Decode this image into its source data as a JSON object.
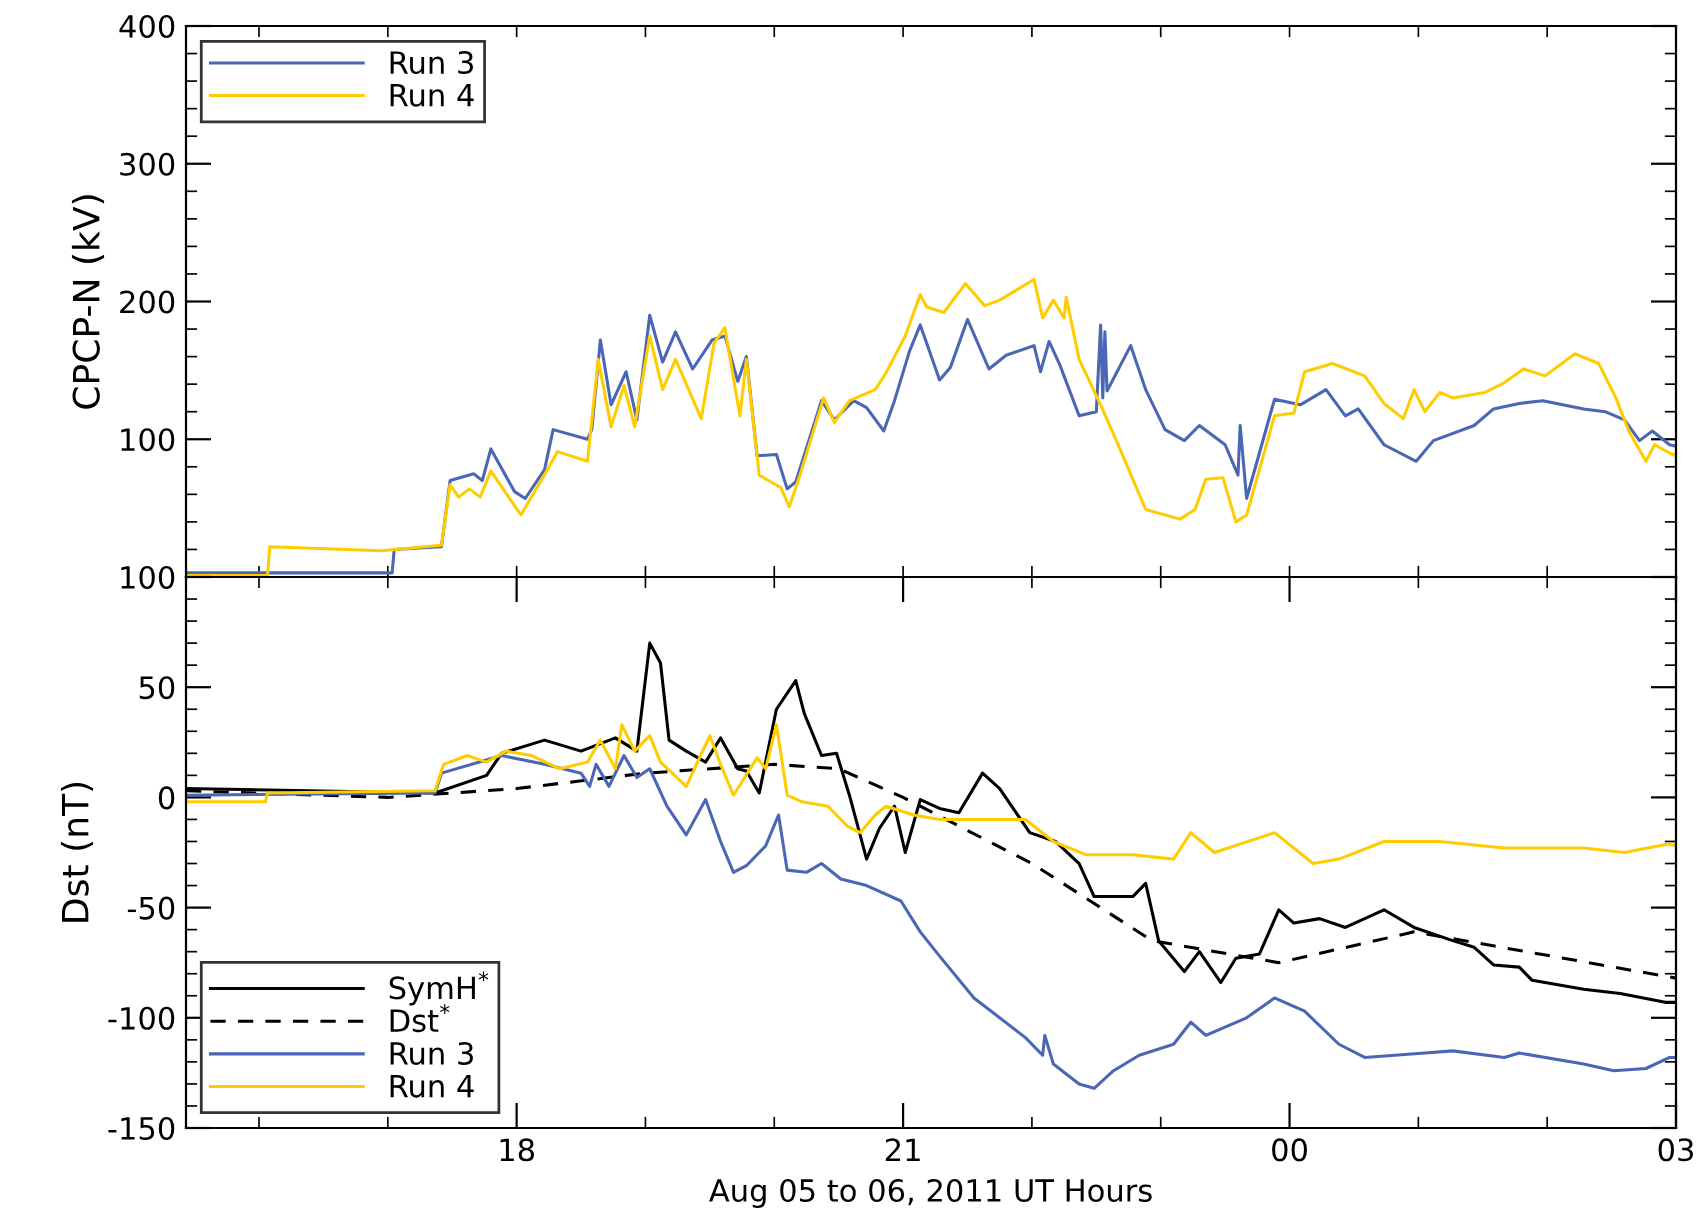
{
  "chart_data": [
    {
      "type": "line",
      "ylabel": "CPCP-N (kV)",
      "xlim": [
        "2011-08-05T15:26",
        "2011-08-06T03:00"
      ],
      "ylim": [
        0,
        400
      ],
      "xticks": [
        {
          "value": "2011-08-05T16:00",
          "label": null
        },
        {
          "value": "2011-08-05T17:00",
          "label": null
        },
        {
          "value": "2011-08-05T18:00",
          "label": null
        },
        {
          "value": "2011-08-05T19:00",
          "label": null
        },
        {
          "value": "2011-08-05T20:00",
          "label": null
        },
        {
          "value": "2011-08-05T21:00",
          "label": null
        },
        {
          "value": "2011-08-05T22:00",
          "label": null
        },
        {
          "value": "2011-08-05T23:00",
          "label": null
        },
        {
          "value": "2011-08-06T00:00",
          "label": null
        },
        {
          "value": "2011-08-06T01:00",
          "label": null
        },
        {
          "value": "2011-08-06T02:00",
          "label": null
        },
        {
          "value": "2011-08-06T03:00",
          "label": null
        }
      ],
      "yticks": [
        {
          "value": 0,
          "label": null
        },
        {
          "value": 20,
          "label": null
        },
        {
          "value": 40,
          "label": null
        },
        {
          "value": 60,
          "label": null
        },
        {
          "value": 80,
          "label": null
        },
        100,
        {
          "value": 120,
          "label": null
        },
        {
          "value": 140,
          "label": null
        },
        {
          "value": 160,
          "label": null
        },
        {
          "value": 180,
          "label": null
        },
        200,
        {
          "value": 220,
          "label": null
        },
        {
          "value": 240,
          "label": null
        },
        {
          "value": 260,
          "label": null
        },
        {
          "value": 280,
          "label": null
        },
        300,
        {
          "value": 320,
          "label": null
        },
        {
          "value": 340,
          "label": null
        },
        {
          "value": 360,
          "label": null
        },
        {
          "value": 380,
          "label": null
        },
        400
      ],
      "tick_labels": "y",
      "grid": false,
      "legend": "top left",
      "series": [
        {
          "name": "Run 3",
          "color": "#4a66b5",
          "line_style": "solid",
          "x": [
            "2011-08-05T15:26",
            "2011-08-05T17:02",
            "2011-08-05T17:03",
            "2011-08-05T17:25",
            "2011-08-05T17:29",
            "2011-08-05T17:40",
            "2011-08-05T17:44",
            "2011-08-05T17:48",
            "2011-08-05T17:59",
            "2011-08-05T18:04",
            "2011-08-05T18:13",
            "2011-08-05T18:17",
            "2011-08-05T18:33",
            "2011-08-05T18:35",
            "2011-08-05T18:39",
            "2011-08-05T18:44",
            "2011-08-05T18:51",
            "2011-08-05T18:56",
            "2011-08-05T19:02",
            "2011-08-05T19:08",
            "2011-08-05T19:14",
            "2011-08-05T19:22",
            "2011-08-05T19:31",
            "2011-08-05T19:37",
            "2011-08-05T19:43",
            "2011-08-05T19:47",
            "2011-08-05T19:52",
            "2011-08-05T20:01",
            "2011-08-05T20:06",
            "2011-08-05T20:10",
            "2011-08-05T20:22",
            "2011-08-05T20:28",
            "2011-08-05T20:37",
            "2011-08-05T20:43",
            "2011-08-05T20:51",
            "2011-08-05T20:56",
            "2011-08-05T21:03",
            "2011-08-05T21:08",
            "2011-08-05T21:17",
            "2011-08-05T21:22",
            "2011-08-05T21:30",
            "2011-08-05T21:40",
            "2011-08-05T21:48",
            "2011-08-05T22:01",
            "2011-08-05T22:04",
            "2011-08-05T22:08",
            "2011-08-05T22:13",
            "2011-08-05T22:22",
            "2011-08-05T22:30",
            "2011-08-05T22:32",
            "2011-08-05T22:33",
            "2011-08-05T22:34",
            "2011-08-05T22:35",
            "2011-08-05T22:46",
            "2011-08-05T22:53",
            "2011-08-05T23:02",
            "2011-08-05T23:11",
            "2011-08-05T23:18",
            "2011-08-05T23:30",
            "2011-08-05T23:36",
            "2011-08-05T23:37",
            "2011-08-05T23:40",
            "2011-08-05T23:53",
            "2011-08-06T00:05",
            "2011-08-06T00:17",
            "2011-08-06T00:26",
            "2011-08-06T00:32",
            "2011-08-06T00:44",
            "2011-08-06T00:59",
            "2011-08-06T01:07",
            "2011-08-06T01:26",
            "2011-08-06T01:35",
            "2011-08-06T01:47",
            "2011-08-06T01:58",
            "2011-08-06T02:17",
            "2011-08-06T02:27",
            "2011-08-06T02:36",
            "2011-08-06T02:43",
            "2011-08-06T02:49",
            "2011-08-06T02:57",
            "2011-08-06T03:00"
          ],
          "values": [
            3,
            3,
            20,
            22,
            70,
            75,
            70,
            93,
            62,
            57,
            78,
            107,
            100,
            107,
            172,
            125,
            149,
            114,
            190,
            156,
            178,
            151,
            172,
            175,
            142,
            160,
            88,
            89,
            64,
            69,
            128,
            114,
            128,
            123,
            106,
            128,
            164,
            183,
            143,
            152,
            187,
            151,
            161,
            168,
            149,
            171,
            154,
            117,
            120,
            183,
            130,
            178,
            135,
            168,
            136,
            107,
            99,
            110,
            96,
            74,
            110,
            57,
            129,
            125,
            136,
            117,
            122,
            96,
            84,
            99,
            110,
            122,
            126,
            128,
            122,
            120,
            114,
            99,
            106,
            96,
            95
          ]
        },
        {
          "name": "Run 4",
          "color": "#ffcc00",
          "line_style": "solid",
          "x": [
            "2011-08-05T15:26",
            "2011-08-05T16:04",
            "2011-08-05T16:05",
            "2011-08-05T16:57",
            "2011-08-05T17:25",
            "2011-08-05T17:29",
            "2011-08-05T17:33",
            "2011-08-05T17:38",
            "2011-08-05T17:43",
            "2011-08-05T17:48",
            "2011-08-05T18:02",
            "2011-08-05T18:14",
            "2011-08-05T18:19",
            "2011-08-05T18:33",
            "2011-08-05T18:38",
            "2011-08-05T18:44",
            "2011-08-05T18:50",
            "2011-08-05T18:55",
            "2011-08-05T19:02",
            "2011-08-05T19:08",
            "2011-08-05T19:14",
            "2011-08-05T19:26",
            "2011-08-05T19:32",
            "2011-08-05T19:37",
            "2011-08-05T19:44",
            "2011-08-05T19:47",
            "2011-08-05T19:53",
            "2011-08-05T20:03",
            "2011-08-05T20:07",
            "2011-08-05T20:12",
            "2011-08-05T20:23",
            "2011-08-05T20:28",
            "2011-08-05T20:35",
            "2011-08-05T20:47",
            "2011-08-05T20:52",
            "2011-08-05T21:01",
            "2011-08-05T21:08",
            "2011-08-05T21:11",
            "2011-08-05T21:19",
            "2011-08-05T21:29",
            "2011-08-05T21:38",
            "2011-08-05T21:45",
            "2011-08-05T22:01",
            "2011-08-05T22:05",
            "2011-08-05T22:10",
            "2011-08-05T22:15",
            "2011-08-05T22:16",
            "2011-08-05T22:22",
            "2011-08-05T22:32",
            "2011-08-05T22:41",
            "2011-08-05T22:53",
            "2011-08-05T23:09",
            "2011-08-05T23:16",
            "2011-08-05T23:21",
            "2011-08-05T23:29",
            "2011-08-05T23:35",
            "2011-08-05T23:40",
            "2011-08-05T23:53",
            "2011-08-06T00:02",
            "2011-08-06T00:07",
            "2011-08-06T00:20",
            "2011-08-06T00:35",
            "2011-08-06T00:44",
            "2011-08-06T00:53",
            "2011-08-06T00:58",
            "2011-08-06T01:03",
            "2011-08-06T01:10",
            "2011-08-06T01:16",
            "2011-08-06T01:31",
            "2011-08-06T01:40",
            "2011-08-06T01:49",
            "2011-08-06T01:59",
            "2011-08-06T02:13",
            "2011-08-06T02:24",
            "2011-08-06T02:32",
            "2011-08-06T02:38",
            "2011-08-06T02:46",
            "2011-08-06T02:50",
            "2011-08-06T02:57",
            "2011-08-06T03:00"
          ],
          "values": [
            1,
            1,
            22,
            19,
            23,
            67,
            58,
            64,
            58,
            77,
            45,
            77,
            91,
            84,
            158,
            109,
            139,
            109,
            175,
            136,
            158,
            115,
            170,
            181,
            117,
            158,
            74,
            65,
            51,
            74,
            130,
            112,
            128,
            136,
            148,
            175,
            205,
            196,
            192,
            213,
            197,
            201,
            216,
            188,
            201,
            188,
            203,
            158,
            125,
            93,
            49,
            42,
            49,
            71,
            72,
            40,
            45,
            117,
            119,
            149,
            155,
            146,
            126,
            115,
            136,
            120,
            134,
            130,
            134,
            141,
            151,
            146,
            162,
            155,
            130,
            106,
            84,
            96,
            90,
            88
          ]
        }
      ]
    },
    {
      "type": "line",
      "xlabel": "Aug 05 to 06, 2011 UT Hours",
      "ylabel": "Dst (nT)",
      "xlim": [
        "2011-08-05T15:26",
        "2011-08-06T03:00"
      ],
      "ylim": [
        -150,
        100
      ],
      "xticks": [
        {
          "value": "2011-08-05T16:00",
          "label": null
        },
        {
          "value": "2011-08-05T17:00",
          "label": null
        },
        {
          "value": "2011-08-05T18:00",
          "label": "18"
        },
        {
          "value": "2011-08-05T19:00",
          "label": null
        },
        {
          "value": "2011-08-05T20:00",
          "label": null
        },
        {
          "value": "2011-08-05T21:00",
          "label": "21"
        },
        {
          "value": "2011-08-05T22:00",
          "label": null
        },
        {
          "value": "2011-08-05T23:00",
          "label": null
        },
        {
          "value": "2011-08-06T00:00",
          "label": "00"
        },
        {
          "value": "2011-08-06T01:00",
          "label": null
        },
        {
          "value": "2011-08-06T02:00",
          "label": null
        },
        {
          "value": "2011-08-06T03:00",
          "label": "03"
        }
      ],
      "yticks": [
        -150,
        {
          "value": -140,
          "label": null
        },
        {
          "value": -130,
          "label": null
        },
        {
          "value": -120,
          "label": null
        },
        {
          "value": -110,
          "label": null
        },
        -100,
        {
          "value": -90,
          "label": null
        },
        {
          "value": -80,
          "label": null
        },
        {
          "value": -70,
          "label": null
        },
        {
          "value": -60,
          "label": null
        },
        -50,
        {
          "value": -40,
          "label": null
        },
        {
          "value": -30,
          "label": null
        },
        {
          "value": -20,
          "label": null
        },
        {
          "value": -10,
          "label": null
        },
        0,
        {
          "value": 10,
          "label": null
        },
        {
          "value": 20,
          "label": null
        },
        {
          "value": 30,
          "label": null
        },
        {
          "value": 40,
          "label": null
        },
        50,
        {
          "value": 60,
          "label": null
        },
        {
          "value": 70,
          "label": null
        },
        {
          "value": 80,
          "label": null
        },
        {
          "value": 90,
          "label": null
        },
        100
      ],
      "grid": false,
      "legend": "bottom left",
      "series": [
        {
          "name": "SymH$^{*}$",
          "color": "#000000",
          "line_style": "solid",
          "x": [
            "2011-08-05T15:26",
            "2011-08-05T17:22",
            "2011-08-05T17:46",
            "2011-08-05T17:53",
            "2011-08-05T18:13",
            "2011-08-05T18:30",
            "2011-08-05T18:46",
            "2011-08-05T18:56",
            "2011-08-05T19:02",
            "2011-08-05T19:07",
            "2011-08-05T19:11",
            "2011-08-05T19:19",
            "2011-08-05T19:28",
            "2011-08-05T19:35",
            "2011-08-05T19:43",
            "2011-08-05T19:47",
            "2011-08-05T19:53",
            "2011-08-05T20:01",
            "2011-08-05T20:10",
            "2011-08-05T20:14",
            "2011-08-05T20:22",
            "2011-08-05T20:29",
            "2011-08-05T20:35",
            "2011-08-05T20:43",
            "2011-08-05T20:49",
            "2011-08-05T20:56",
            "2011-08-05T21:01",
            "2011-08-05T21:08",
            "2011-08-05T21:17",
            "2011-08-05T21:26",
            "2011-08-05T21:37",
            "2011-08-05T21:45",
            "2011-08-05T21:59",
            "2011-08-05T22:11",
            "2011-08-05T22:22",
            "2011-08-05T22:29",
            "2011-08-05T22:47",
            "2011-08-05T22:53",
            "2011-08-05T22:59",
            "2011-08-05T23:11",
            "2011-08-05T23:18",
            "2011-08-05T23:28",
            "2011-08-05T23:35",
            "2011-08-05T23:46",
            "2011-08-05T23:55",
            "2011-08-06T00:02",
            "2011-08-06T00:14",
            "2011-08-06T00:26",
            "2011-08-06T00:44",
            "2011-08-06T00:58",
            "2011-08-06T01:16",
            "2011-08-06T01:26",
            "2011-08-06T01:35",
            "2011-08-06T01:47",
            "2011-08-06T01:53",
            "2011-08-06T02:17",
            "2011-08-06T02:34",
            "2011-08-06T02:55",
            "2011-08-06T03:00"
          ],
          "values": [
            4,
            2,
            10,
            20,
            26,
            21,
            27,
            21,
            70,
            61,
            26,
            21,
            16,
            27,
            13,
            12,
            2,
            40,
            53,
            38,
            19,
            20,
            1,
            -28,
            -14,
            -4,
            -25,
            -1,
            -5,
            -7,
            11,
            4,
            -16,
            -20,
            -30,
            -45,
            -45,
            -39,
            -65,
            -79,
            -70,
            -84,
            -73,
            -71,
            -51,
            -57,
            -55,
            -59,
            -51,
            -59,
            -65,
            -68,
            -76,
            -77,
            -83,
            -87,
            -89,
            -93,
            -93
          ]
        },
        {
          "name": "Dst$^{*}$",
          "color": "#000000",
          "line_style": "dashed",
          "x": [
            "2011-08-05T15:26",
            "2011-08-05T17:00",
            "2011-08-05T18:00",
            "2011-08-05T19:00",
            "2011-08-05T20:00",
            "2011-08-05T20:30",
            "2011-08-05T21:00",
            "2011-08-05T22:00",
            "2011-08-05T22:56",
            "2011-08-05T23:55",
            "2011-08-06T00:58",
            "2011-08-06T03:00"
          ],
          "values": [
            3,
            0,
            4,
            11,
            15,
            13,
            0,
            -30,
            -65,
            -75,
            -61,
            -82
          ]
        },
        {
          "name": "Run 3",
          "color": "#4a66b5",
          "line_style": "solid",
          "x": [
            "2011-08-05T15:26",
            "2011-08-05T17:22",
            "2011-08-05T17:25",
            "2011-08-05T17:53",
            "2011-08-05T18:13",
            "2011-08-05T18:30",
            "2011-08-05T18:34",
            "2011-08-05T18:37",
            "2011-08-05T18:43",
            "2011-08-05T18:50",
            "2011-08-05T18:56",
            "2011-08-05T19:02",
            "2011-08-05T19:10",
            "2011-08-05T19:19",
            "2011-08-05T19:28",
            "2011-08-05T19:35",
            "2011-08-05T19:41",
            "2011-08-05T19:47",
            "2011-08-05T19:56",
            "2011-08-05T20:02",
            "2011-08-05T20:06",
            "2011-08-05T20:15",
            "2011-08-05T20:22",
            "2011-08-05T20:31",
            "2011-08-05T20:43",
            "2011-08-05T20:59",
            "2011-08-05T21:08",
            "2011-08-05T21:17",
            "2011-08-05T21:33",
            "2011-08-05T21:57",
            "2011-08-05T22:05",
            "2011-08-05T22:06",
            "2011-08-05T22:10",
            "2011-08-05T22:22",
            "2011-08-05T22:29",
            "2011-08-05T22:38",
            "2011-08-05T22:50",
            "2011-08-05T23:06",
            "2011-08-05T23:14",
            "2011-08-05T23:21",
            "2011-08-05T23:40",
            "2011-08-05T23:53",
            "2011-08-06T00:07",
            "2011-08-06T00:23",
            "2011-08-06T00:35",
            "2011-08-06T01:03",
            "2011-08-06T01:16",
            "2011-08-06T01:40",
            "2011-08-06T01:47",
            "2011-08-06T02:17",
            "2011-08-06T02:31",
            "2011-08-06T02:46",
            "2011-08-06T02:57",
            "2011-08-06T03:00"
          ],
          "values": [
            1,
            2,
            11,
            19,
            15,
            11,
            5,
            15,
            5,
            19,
            9,
            13,
            -4,
            -17,
            -1,
            -20,
            -34,
            -31,
            -22,
            -8,
            -33,
            -34,
            -30,
            -37,
            -40,
            -47,
            -61,
            -72,
            -91,
            -109,
            -117,
            -108,
            -121,
            -130,
            -132,
            -124,
            -117,
            -112,
            -102,
            -108,
            -100,
            -91,
            -97,
            -112,
            -118,
            -116,
            -115,
            -118,
            -116,
            -121,
            -124,
            -123,
            -118,
            -118
          ]
        },
        {
          "name": "Run 4",
          "color": "#ffcc00",
          "line_style": "solid",
          "x": [
            "2011-08-05T15:26",
            "2011-08-05T16:03",
            "2011-08-05T16:04",
            "2011-08-05T17:22",
            "2011-08-05T17:26",
            "2011-08-05T17:37",
            "2011-08-05T17:46",
            "2011-08-05T17:55",
            "2011-08-05T18:07",
            "2011-08-05T18:20",
            "2011-08-05T18:33",
            "2011-08-05T18:39",
            "2011-08-05T18:46",
            "2011-08-05T18:49",
            "2011-08-05T18:55",
            "2011-08-05T19:02",
            "2011-08-05T19:07",
            "2011-08-05T19:19",
            "2011-08-05T19:30",
            "2011-08-05T19:35",
            "2011-08-05T19:41",
            "2011-08-05T19:52",
            "2011-08-05T19:56",
            "2011-08-05T20:01",
            "2011-08-05T20:06",
            "2011-08-05T20:13",
            "2011-08-05T20:25",
            "2011-08-05T20:34",
            "2011-08-05T20:40",
            "2011-08-05T20:47",
            "2011-08-05T20:52",
            "2011-08-05T21:05",
            "2011-08-05T21:17",
            "2011-08-05T21:26",
            "2011-08-05T21:57",
            "2011-08-05T22:10",
            "2011-08-05T22:25",
            "2011-08-05T22:47",
            "2011-08-05T23:06",
            "2011-08-05T23:14",
            "2011-08-05T23:25",
            "2011-08-05T23:53",
            "2011-08-06T00:11",
            "2011-08-06T00:23",
            "2011-08-06T00:44",
            "2011-08-06T01:10",
            "2011-08-06T01:40",
            "2011-08-06T02:17",
            "2011-08-06T02:36",
            "2011-08-06T02:57",
            "2011-08-06T03:00"
          ],
          "values": [
            -2,
            -2,
            2,
            3,
            15,
            19,
            16,
            21,
            19,
            13,
            16,
            26,
            13,
            33,
            21,
            28,
            16,
            5,
            28,
            15,
            1,
            18,
            13,
            33,
            1,
            -2,
            -4,
            -13,
            -16,
            -8,
            -4,
            -8,
            -10,
            -10,
            -10,
            -20,
            -26,
            -26,
            -28,
            -16,
            -25,
            -16,
            -30,
            -28,
            -20,
            -20,
            -23,
            -23,
            -25,
            -21,
            -22
          ]
        }
      ]
    }
  ]
}
